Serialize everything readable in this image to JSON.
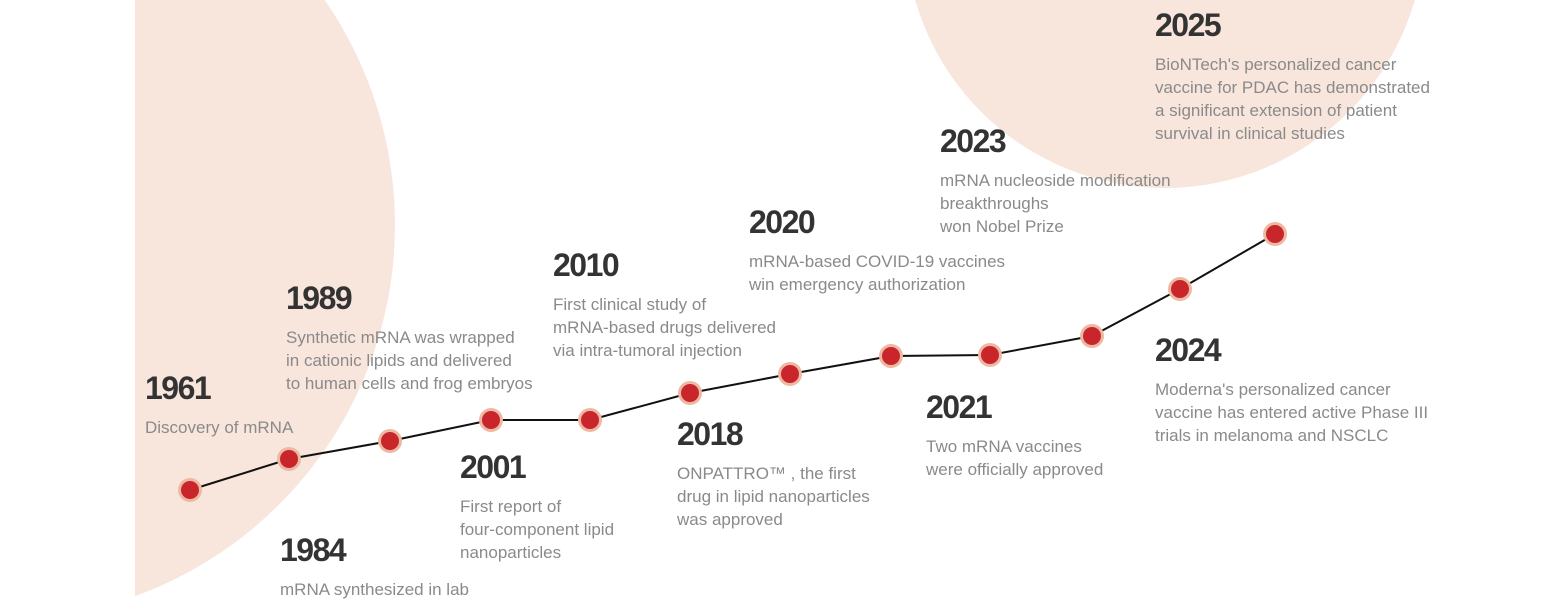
{
  "colors": {
    "background_shape": "#f8e6dd",
    "dot_fill": "#c8262a",
    "dot_ring": "#eeb9a4",
    "line": "#111111",
    "year": "#333333",
    "text": "#8a8a8a"
  },
  "events": [
    {
      "year": "1961",
      "text": "Discovery of mRNA"
    },
    {
      "year": "1984",
      "text": "mRNA synthesized in lab"
    },
    {
      "year": "1989",
      "text": "Synthetic mRNA was wrapped\nin cationic lipids and delivered\nto human cells and frog embryos"
    },
    {
      "year": "2001",
      "text": "First report of\nfour-component lipid\nnanoparticles"
    },
    {
      "year": "2010",
      "text": "First clinical study of\nmRNA-based drugs delivered\nvia intra-tumoral injection"
    },
    {
      "year": "2018",
      "text": "ONPATTRO™ , the first\ndrug in lipid nanoparticles\nwas approved"
    },
    {
      "year": "2020",
      "text": "mRNA-based COVID-19 vaccines\nwin emergency authorization"
    },
    {
      "year": "2021",
      "text": "Two mRNA vaccines\nwere officially approved"
    },
    {
      "year": "2023",
      "text": "mRNA nucleoside modification\nbreakthroughs\nwon Nobel Prize"
    },
    {
      "year": "2024",
      "text": "Moderna's personalized cancer\nvaccine has entered active Phase III\ntrials in melanoma and NSCLC"
    },
    {
      "year": "2025",
      "text": "BioNTech's personalized cancer\nvaccine for PDAC has demonstrated\na significant extension of patient\nsurvival in clinical studies"
    }
  ]
}
